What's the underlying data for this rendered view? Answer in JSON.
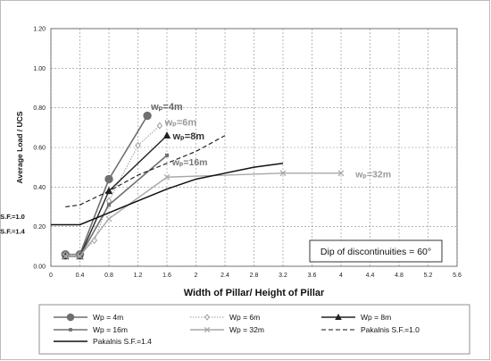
{
  "chart_data": {
    "type": "line",
    "title": "",
    "xlabel": "Width of Pillar/ Height of Pillar",
    "ylabel": "Average Load / UCS",
    "xlim": [
      0,
      5.6
    ],
    "ylim": [
      0,
      1.2
    ],
    "x_ticks": [
      "0",
      "0.4",
      "0.8",
      "1.2",
      "1.6",
      "2",
      "2.4",
      "2.8",
      "3.2",
      "3.6",
      "4",
      "4.4",
      "4.8",
      "5.2",
      "5.6"
    ],
    "y_ticks": [
      "0.00",
      "0.20",
      "0.40",
      "0.60",
      "0.80",
      "1.00",
      "1.20"
    ],
    "grid": "dashed",
    "legend_position": "bottom",
    "series": [
      {
        "name": "Wp = 4m",
        "color": "#6f6f6f",
        "line": "solid",
        "marker": "circle",
        "points": [
          [
            0.2,
            0.06
          ],
          [
            0.4,
            0.06
          ],
          [
            0.8,
            0.44
          ],
          [
            1.33,
            0.76
          ]
        ]
      },
      {
        "name": "Wp = 6m",
        "color": "#9a9a9a",
        "line": "dotted",
        "marker": "diamond-open",
        "points": [
          [
            0.2,
            0.06
          ],
          [
            0.4,
            0.06
          ],
          [
            0.6,
            0.13
          ],
          [
            0.8,
            0.33
          ],
          [
            1.2,
            0.61
          ],
          [
            1.5,
            0.71
          ]
        ]
      },
      {
        "name": "Wp = 8m",
        "color": "#222222",
        "line": "solid",
        "marker": "triangle",
        "points": [
          [
            0.2,
            0.05
          ],
          [
            0.4,
            0.05
          ],
          [
            0.8,
            0.38
          ],
          [
            1.6,
            0.66
          ]
        ]
      },
      {
        "name": "Wp = 16m",
        "color": "#707070",
        "line": "solid",
        "marker": "square",
        "points": [
          [
            0.2,
            0.05
          ],
          [
            0.4,
            0.05
          ],
          [
            0.8,
            0.31
          ],
          [
            1.6,
            0.56
          ]
        ]
      },
      {
        "name": "Wp = 32m",
        "color": "#a8a8a8",
        "line": "solid",
        "marker": "x",
        "points": [
          [
            0.2,
            0.05
          ],
          [
            0.4,
            0.05
          ],
          [
            0.8,
            0.24
          ],
          [
            1.6,
            0.45
          ],
          [
            3.2,
            0.47
          ],
          [
            4.0,
            0.47
          ]
        ]
      },
      {
        "name": "Pakalnis S.F.=1.0",
        "color": "#111111",
        "line": "dashed",
        "marker": "none",
        "points": [
          [
            0.2,
            0.3
          ],
          [
            0.4,
            0.31
          ],
          [
            0.8,
            0.38
          ],
          [
            1.2,
            0.46
          ],
          [
            1.6,
            0.52
          ],
          [
            2.0,
            0.58
          ],
          [
            2.4,
            0.66
          ]
        ]
      },
      {
        "name": "Pakalnis S.F.=1.4",
        "color": "#111111",
        "line": "solid",
        "marker": "none",
        "points": [
          [
            0.0,
            0.21
          ],
          [
            0.4,
            0.21
          ],
          [
            0.8,
            0.27
          ],
          [
            1.2,
            0.33
          ],
          [
            1.6,
            0.39
          ],
          [
            2.0,
            0.44
          ],
          [
            2.4,
            0.47
          ],
          [
            2.8,
            0.5
          ],
          [
            3.2,
            0.52
          ]
        ]
      }
    ],
    "annotations": {
      "wp4": "wₚ=4m",
      "wp6": "wₚ=6m",
      "wp8": "wₚ=8m",
      "wp16": "wₚ=16m",
      "wp32": "wₚ=32m",
      "sf10": "S.F.=1.0",
      "sf14": "S.F.=1.4"
    },
    "info_box": "Dip of discontinuities = 60°"
  }
}
